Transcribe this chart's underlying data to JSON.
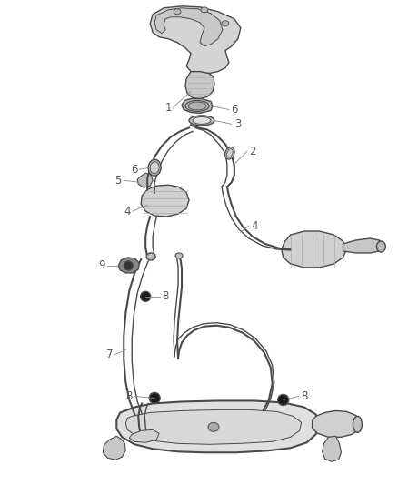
{
  "background_color": "#ffffff",
  "line_color": "#4a4a4a",
  "label_color": "#555555",
  "label_fontsize": 8.5,
  "figsize": [
    4.38,
    5.33
  ],
  "dpi": 100,
  "parts": {
    "manifold": {
      "fc": "#e0e0e0",
      "ec": "#4a4a4a"
    },
    "pipe": {
      "fc": "#d8d8d8",
      "ec": "#4a4a4a"
    },
    "cat": {
      "fc": "#d0d0d0",
      "ec": "#4a4a4a"
    },
    "muffler": {
      "fc": "#e8e8e8",
      "ec": "#4a4a4a"
    },
    "ring": {
      "fc": "#c8c8c8",
      "ec": "#4a4a4a"
    },
    "hanger": {
      "fc": "#222222",
      "ec": "#4a4a4a"
    }
  }
}
